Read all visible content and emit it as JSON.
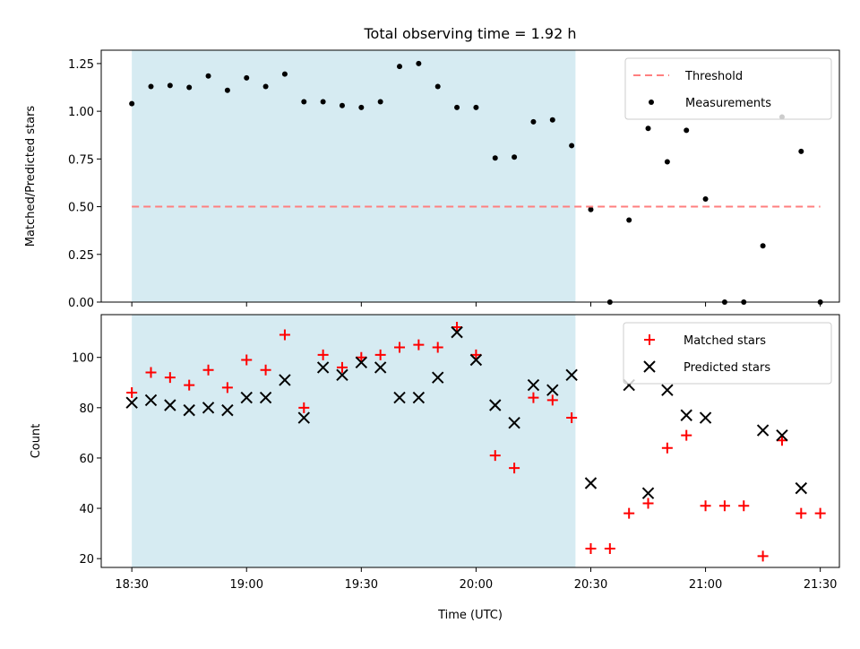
{
  "chart_data": {
    "title": "Total observing time = 1.92 h",
    "xlabel": "Time (UTC)",
    "x_ticks": [
      "18:30",
      "19:00",
      "19:30",
      "20:00",
      "20:30",
      "21:00",
      "21:30"
    ],
    "x_range": [
      "18:22",
      "21:35"
    ],
    "shaded_interval": [
      "18:30",
      "20:26"
    ],
    "panels": [
      {
        "type": "scatter",
        "ylabel": "Matched/Predicted stars",
        "ylim": [
          0,
          1.32
        ],
        "y_ticks": [
          "0.00",
          "0.25",
          "0.50",
          "0.75",
          "1.00",
          "1.25"
        ],
        "legend_position": "top-right",
        "threshold": {
          "name": "Threshold",
          "value": 0.5,
          "color": "#ff7f7f",
          "x_start": "18:30",
          "x_end": "21:30"
        },
        "series": [
          {
            "name": "Measurements",
            "color": "#000000",
            "points": [
              [
                "18:30",
                1.04
              ],
              [
                "18:35",
                1.13
              ],
              [
                "18:40",
                1.135
              ],
              [
                "18:45",
                1.125
              ],
              [
                "18:50",
                1.185
              ],
              [
                "18:55",
                1.11
              ],
              [
                "19:00",
                1.175
              ],
              [
                "19:05",
                1.13
              ],
              [
                "19:10",
                1.195
              ],
              [
                "19:15",
                1.05
              ],
              [
                "19:20",
                1.05
              ],
              [
                "19:25",
                1.03
              ],
              [
                "19:30",
                1.02
              ],
              [
                "19:35",
                1.05
              ],
              [
                "19:40",
                1.235
              ],
              [
                "19:45",
                1.25
              ],
              [
                "19:50",
                1.13
              ],
              [
                "19:55",
                1.02
              ],
              [
                "20:00",
                1.02
              ],
              [
                "20:05",
                0.755
              ],
              [
                "20:10",
                0.76
              ],
              [
                "20:15",
                0.945
              ],
              [
                "20:20",
                0.955
              ],
              [
                "20:25",
                0.82
              ],
              [
                "20:30",
                0.485
              ],
              [
                "20:35",
                0.0
              ],
              [
                "20:40",
                0.43
              ],
              [
                "20:45",
                0.91
              ],
              [
                "20:50",
                0.735
              ],
              [
                "20:55",
                0.9
              ],
              [
                "21:00",
                0.54
              ],
              [
                "21:05",
                0.0
              ],
              [
                "21:10",
                0.0
              ],
              [
                "21:15",
                0.295
              ],
              [
                "21:20",
                0.97
              ],
              [
                "21:25",
                0.79
              ],
              [
                "21:30",
                0.0
              ]
            ]
          }
        ]
      },
      {
        "type": "scatter",
        "ylabel": "Count",
        "ylim": [
          16.5,
          117
        ],
        "y_ticks": [
          "20",
          "40",
          "60",
          "80",
          "100"
        ],
        "legend_position": "top-right",
        "series": [
          {
            "name": "Matched stars",
            "marker": "plus",
            "color": "#ff0000",
            "points": [
              [
                "18:30",
                86
              ],
              [
                "18:35",
                94
              ],
              [
                "18:40",
                92
              ],
              [
                "18:45",
                89
              ],
              [
                "18:50",
                95
              ],
              [
                "18:55",
                88
              ],
              [
                "19:00",
                99
              ],
              [
                "19:05",
                95
              ],
              [
                "19:10",
                109
              ],
              [
                "19:15",
                80
              ],
              [
                "19:20",
                101
              ],
              [
                "19:25",
                96
              ],
              [
                "19:30",
                100
              ],
              [
                "19:35",
                101
              ],
              [
                "19:40",
                104
              ],
              [
                "19:45",
                105
              ],
              [
                "19:50",
                104
              ],
              [
                "19:55",
                112
              ],
              [
                "20:00",
                101
              ],
              [
                "20:05",
                61
              ],
              [
                "20:10",
                56
              ],
              [
                "20:15",
                84
              ],
              [
                "20:20",
                83
              ],
              [
                "20:25",
                76
              ],
              [
                "20:30",
                24
              ],
              [
                "20:35",
                24
              ],
              [
                "20:40",
                38
              ],
              [
                "20:45",
                42
              ],
              [
                "20:50",
                64
              ],
              [
                "20:55",
                69
              ],
              [
                "21:00",
                41
              ],
              [
                "21:05",
                41
              ],
              [
                "21:10",
                41
              ],
              [
                "21:15",
                21
              ],
              [
                "21:20",
                67
              ],
              [
                "21:25",
                38
              ],
              [
                "21:30",
                38
              ]
            ]
          },
          {
            "name": "Predicted stars",
            "marker": "x",
            "color": "#000000",
            "points": [
              [
                "18:30",
                82
              ],
              [
                "18:35",
                83
              ],
              [
                "18:40",
                81
              ],
              [
                "18:45",
                79
              ],
              [
                "18:50",
                80
              ],
              [
                "18:55",
                79
              ],
              [
                "19:00",
                84
              ],
              [
                "19:05",
                84
              ],
              [
                "19:10",
                91
              ],
              [
                "19:15",
                76
              ],
              [
                "19:20",
                96
              ],
              [
                "19:25",
                93
              ],
              [
                "19:30",
                98
              ],
              [
                "19:35",
                96
              ],
              [
                "19:40",
                84
              ],
              [
                "19:45",
                84
              ],
              [
                "19:50",
                92
              ],
              [
                "19:55",
                110
              ],
              [
                "20:00",
                99
              ],
              [
                "20:05",
                81
              ],
              [
                "20:10",
                74
              ],
              [
                "20:15",
                89
              ],
              [
                "20:20",
                87
              ],
              [
                "20:25",
                93
              ],
              [
                "20:30",
                50
              ],
              [
                "20:40",
                89
              ],
              [
                "20:45",
                46
              ],
              [
                "20:50",
                87
              ],
              [
                "20:55",
                77
              ],
              [
                "21:00",
                76
              ],
              [
                "21:15",
                71
              ],
              [
                "21:20",
                69
              ],
              [
                "21:25",
                48
              ]
            ]
          }
        ]
      }
    ]
  },
  "colors": {
    "shade": "#add8e6",
    "threshold": "#ff7f7f",
    "matched": "#ff0000",
    "predicted": "#000000",
    "measurements": "#000000"
  }
}
